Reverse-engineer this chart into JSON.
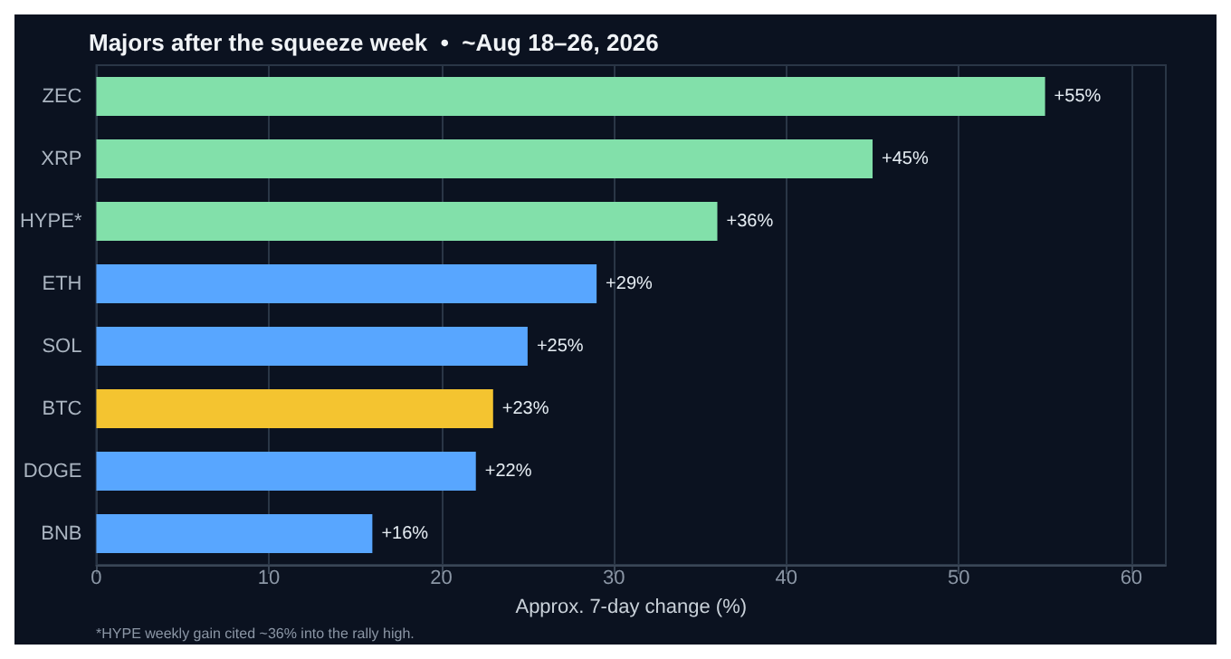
{
  "chart_data": {
    "type": "bar",
    "orientation": "horizontal",
    "title": "Majors after the squeeze week  •  ~Aug 18–26, 2026",
    "xlabel": "Approx. 7-day change (%)",
    "categories": [
      "ZEC",
      "XRP",
      "HYPE*",
      "ETH",
      "SOL",
      "BTC",
      "DOGE",
      "BNB"
    ],
    "values": [
      55,
      45,
      36,
      29,
      25,
      23,
      22,
      16
    ],
    "colors": [
      "#82e0aa",
      "#82e0aa",
      "#82e0aa",
      "#58a6ff",
      "#58a6ff",
      "#f4c430",
      "#58a6ff",
      "#58a6ff"
    ],
    "value_labels": [
      "+55%",
      "+45%",
      "+36%",
      "+29%",
      "+25%",
      "+23%",
      "+22%",
      "+16%"
    ],
    "xlim": [
      0,
      62
    ],
    "xticks": [
      0,
      10,
      20,
      30,
      40,
      50,
      60
    ],
    "grid": "x",
    "annotations": [
      "*HYPE weekly gain cited ~36% into the rally high."
    ]
  }
}
